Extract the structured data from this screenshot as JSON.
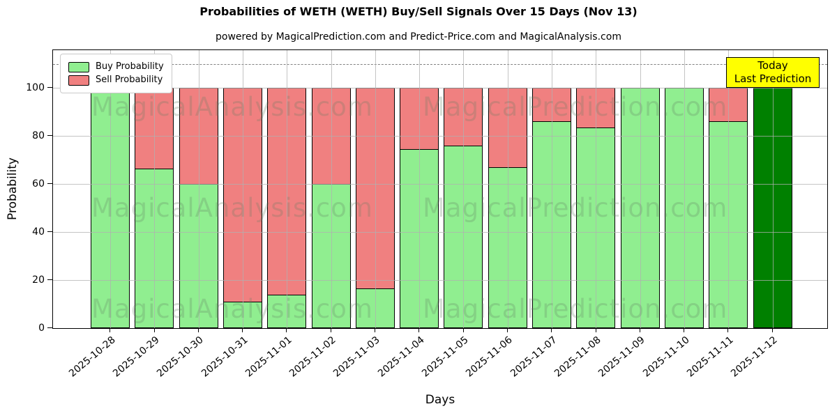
{
  "figure": {
    "title": "Probabilities of WETH (WETH) Buy/Sell Signals Over 15 Days (Nov 13)",
    "subtitle": "powered by MagicalPrediction.com and Predict-Price.com and MagicalAnalysis.com"
  },
  "chart_data": {
    "type": "bar",
    "stacked": true,
    "title": "Probabilities of WETH (WETH) Buy/Sell Signals Over 15 Days (Nov 13)",
    "xlabel": "Days",
    "ylabel": "Probability",
    "ylim": [
      0,
      115.7
    ],
    "yticks": [
      0,
      20,
      40,
      60,
      80,
      100
    ],
    "grid": true,
    "dashed_threshold_y": 110,
    "legend_position": "upper left",
    "categories": [
      "2025-10-28",
      "2025-10-29",
      "2025-10-30",
      "2025-10-31",
      "2025-11-01",
      "2025-11-02",
      "2025-11-03",
      "2025-11-04",
      "2025-11-05",
      "2025-11-06",
      "2025-11-07",
      "2025-11-08",
      "2025-11-09",
      "2025-11-10",
      "2025-11-11",
      "2025-11-12"
    ],
    "series": [
      {
        "name": "Buy Probability",
        "color": "#90ee90",
        "values": [
          100,
          66.5,
          60,
          11,
          14,
          60,
          16.5,
          74.5,
          76,
          67,
          86,
          83.5,
          100,
          100,
          86,
          100
        ]
      },
      {
        "name": "Sell Probability",
        "color": "#f08080",
        "values": [
          0,
          33.5,
          40,
          89,
          86,
          40,
          83.5,
          25.5,
          24,
          33,
          14,
          16.5,
          0,
          0,
          14,
          0
        ]
      }
    ],
    "today_bar": {
      "category": "2025-11-12",
      "index": 15,
      "color": "#008000"
    }
  },
  "legend": {
    "items": [
      {
        "label": "Buy Probability",
        "color": "#90ee90"
      },
      {
        "label": "Sell Probability",
        "color": "#f08080"
      }
    ]
  },
  "annotation_box": {
    "line1": "Today",
    "line2": "Last Prediction",
    "bg_color": "#ffff00"
  },
  "watermarks": {
    "left_text": "MagicalAnalysis.com",
    "right_text": "MagicalPrediction.com"
  },
  "colors": {
    "buy": "#90ee90",
    "sell": "#f08080",
    "today": "#008000",
    "grid": "#b0b0b0",
    "dashed_line": "#808080",
    "annotation_bg": "#ffff00",
    "bar_edge": "#000000"
  }
}
